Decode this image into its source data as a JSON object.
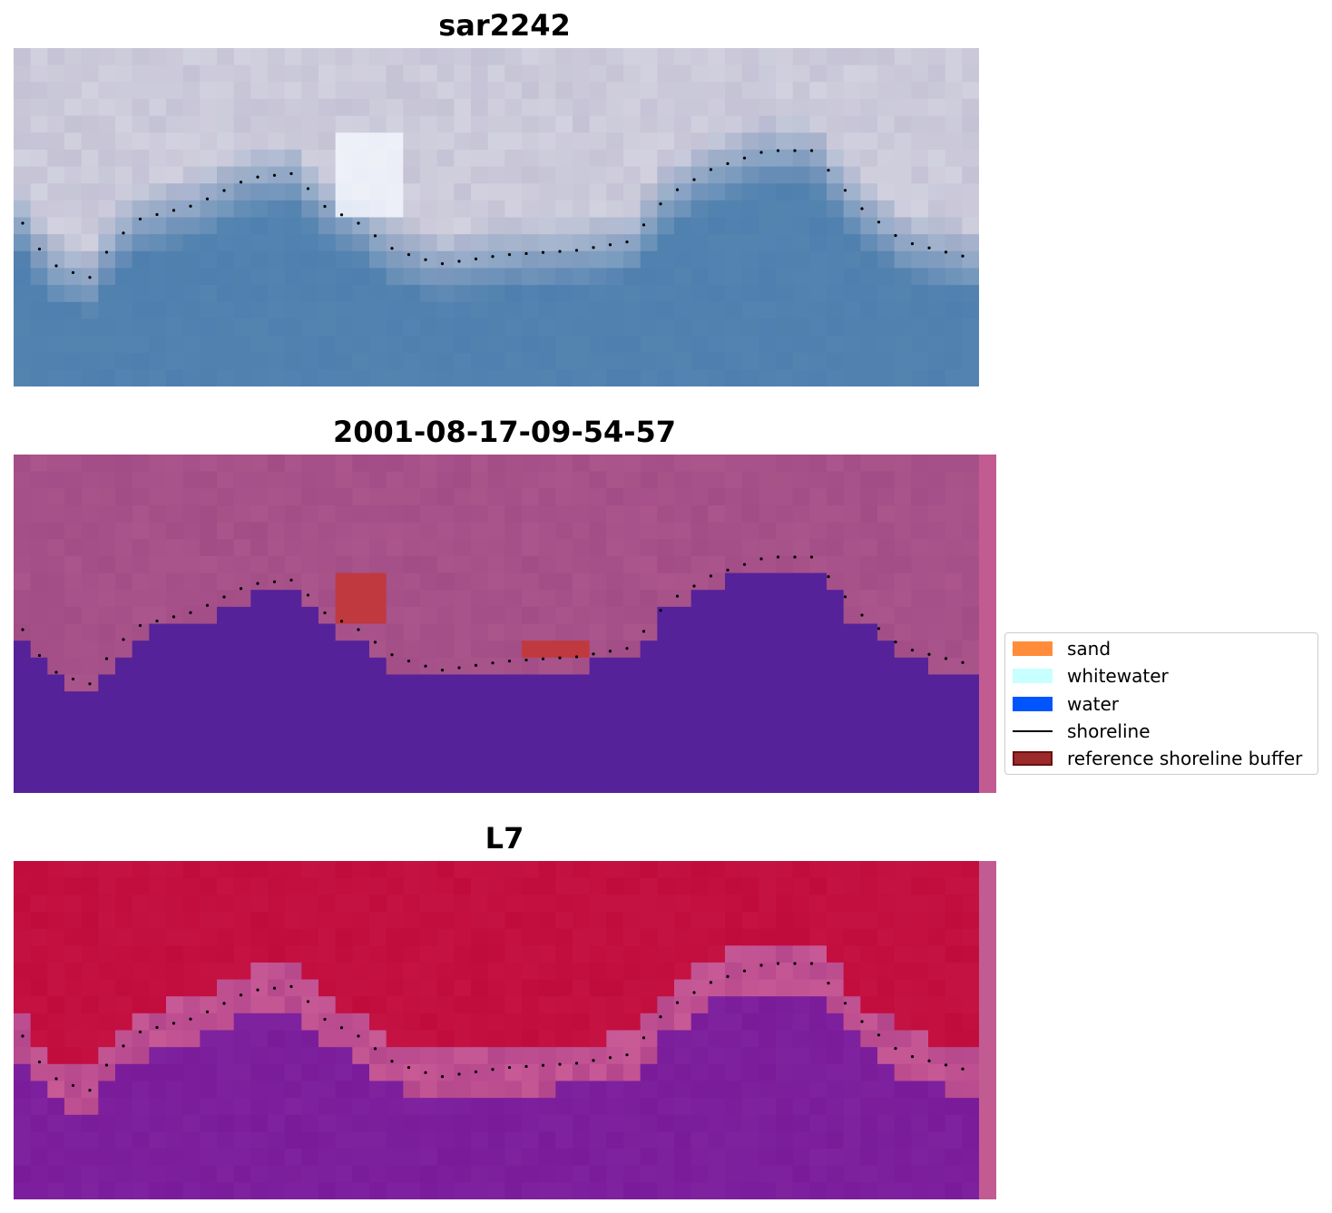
{
  "panels": [
    {
      "title": "sar2242",
      "mode": "rgb"
    },
    {
      "title": "2001-08-17-09-54-57",
      "mode": "class"
    },
    {
      "title": "L7",
      "mode": "index"
    }
  ],
  "legend": {
    "items": [
      {
        "label": "sand",
        "color": "#ff8c3a",
        "kind": "patch"
      },
      {
        "label": "whitewater",
        "color": "#c8ffff",
        "kind": "patch"
      },
      {
        "label": "water",
        "color": "#0055ff",
        "kind": "patch"
      },
      {
        "label": "shoreline",
        "color": "#000000",
        "kind": "line"
      },
      {
        "label": "reference shoreline buffer",
        "color": "#9b2a2a",
        "kind": "patch"
      }
    ]
  },
  "colors": {
    "rgb_sky": "#c4c2d4",
    "rgb_water": "#4f7fae",
    "class_land": "#a24d86",
    "class_water": "#55229a",
    "class_buffer": "#c0393e",
    "index_land": "#c00c3c",
    "index_water": "#7a1c9a",
    "edge_strip": "#c25b92"
  }
}
